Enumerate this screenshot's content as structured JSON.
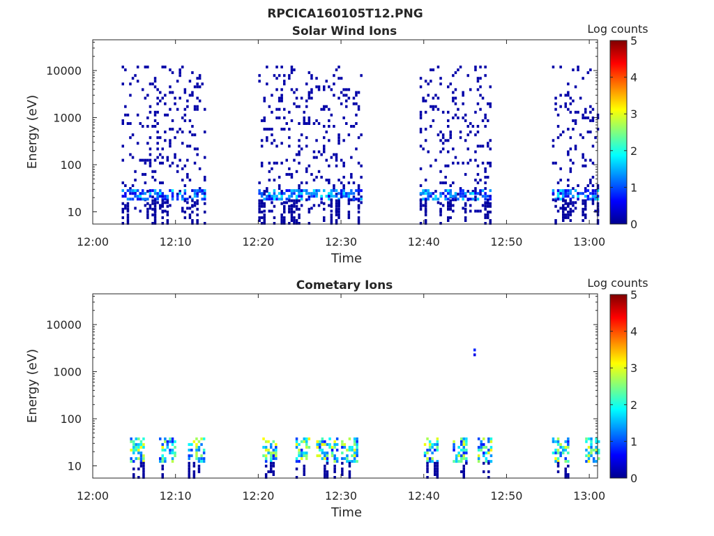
{
  "figure_title": "RPCICA160105T12.PNG",
  "chart_data": [
    {
      "type": "heatmap",
      "title": "Solar Wind Ions",
      "xlabel": "Time",
      "ylabel": "Energy (eV)",
      "y_scale": "log",
      "ylim": [
        5.5,
        45000
      ],
      "xlim": [
        "12:00",
        "13:01"
      ],
      "x_ticks": [
        "12:00",
        "12:10",
        "12:20",
        "12:30",
        "12:40",
        "12:50",
        "13:00"
      ],
      "y_ticks": [
        "10",
        "100",
        "1000",
        "10000"
      ],
      "colorbar": {
        "label": "Log counts",
        "min": 0,
        "max": 5,
        "ticks": [
          "0",
          "1",
          "2",
          "3",
          "4",
          "5"
        ],
        "colormap": "jet"
      },
      "bursts": [
        {
          "start": "12:03.5",
          "end": "12:13.5"
        },
        {
          "start": "12:20.0",
          "end": "12:32.5"
        },
        {
          "start": "12:39.5",
          "end": "12:48.0"
        },
        {
          "start": "12:55.5",
          "end": "13:01.0"
        }
      ],
      "background": {
        "emin": 10,
        "emax": 12000,
        "level": 0.2
      },
      "core": {
        "emin": 18,
        "emax": 30,
        "level": 1.3
      },
      "grid": false
    },
    {
      "type": "heatmap",
      "title": "Cometary Ions",
      "xlabel": "Time",
      "ylabel": "Energy (eV)",
      "y_scale": "log",
      "ylim": [
        5.5,
        45000
      ],
      "xlim": [
        "12:00",
        "13:01"
      ],
      "x_ticks": [
        "12:00",
        "12:10",
        "12:20",
        "12:30",
        "12:40",
        "12:50",
        "13:00"
      ],
      "y_ticks": [
        "10",
        "100",
        "1000",
        "10000"
      ],
      "colorbar": {
        "label": "Log counts",
        "min": 0,
        "max": 5,
        "ticks": [
          "0",
          "1",
          "2",
          "3",
          "4",
          "5"
        ],
        "colormap": "jet"
      },
      "bursts": [
        {
          "start": "12:04.5",
          "end": "12:06.0"
        },
        {
          "start": "12:08.0",
          "end": "12:10.0"
        },
        {
          "start": "12:11.5",
          "end": "12:13.5"
        },
        {
          "start": "12:20.5",
          "end": "12:22.0"
        },
        {
          "start": "12:24.5",
          "end": "12:26.0"
        },
        {
          "start": "12:27.0",
          "end": "12:29.5"
        },
        {
          "start": "12:30.0",
          "end": "12:32.0"
        },
        {
          "start": "12:40.0",
          "end": "12:41.5"
        },
        {
          "start": "12:43.5",
          "end": "12:45.0"
        },
        {
          "start": "12:46.5",
          "end": "12:48.0"
        },
        {
          "start": "12:55.5",
          "end": "12:57.5"
        },
        {
          "start": "12:59.5",
          "end": "13:01.0"
        }
      ],
      "core": {
        "emin": 12,
        "emax": 40,
        "level": 2.3
      },
      "isolated_points": [
        {
          "time": "12:46.0",
          "energy": 2800,
          "level": 0.8
        },
        {
          "time": "12:46.0",
          "energy": 2200,
          "level": 0.5
        }
      ],
      "grid": false
    }
  ]
}
